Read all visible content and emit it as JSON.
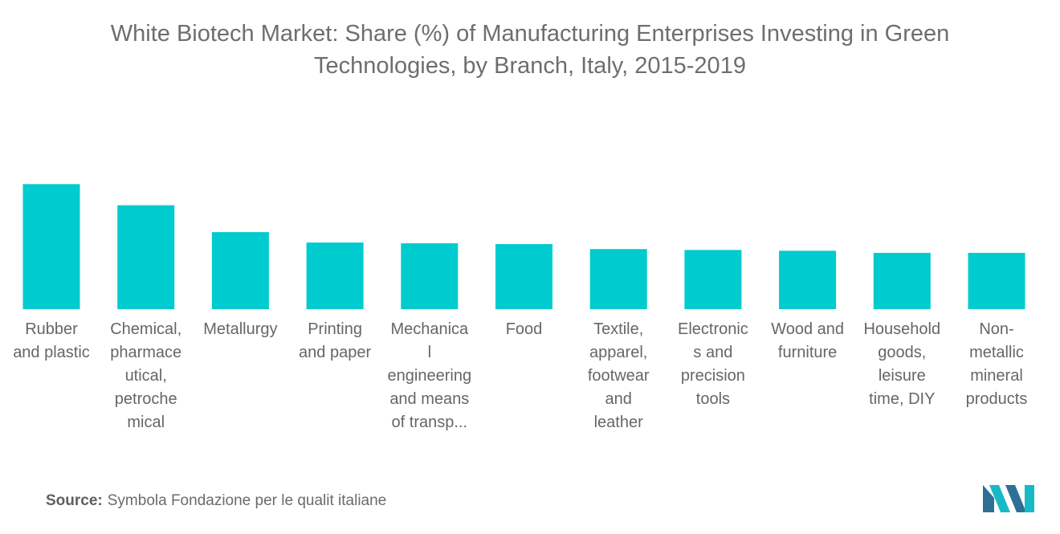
{
  "title": "White Biotech Market: Share (%) of Manufacturing Enterprises Investing in Green Technologies, by Branch, Italy, 2015-2019",
  "source": {
    "label": "Source:",
    "text": "Symbola Fondazione per le qualit italiane"
  },
  "logo_name": "mordor-intelligence-logo",
  "colors": {
    "bar": "#00CBCE",
    "text": "#6b6b6b",
    "logo_dark": "#2e6f96",
    "logo_light": "#18b9c7"
  },
  "chart_data": {
    "type": "bar",
    "title": "White Biotech Market: Share (%) of Manufacturing Enterprises Investing in Green Technologies, by Branch, Italy, 2015-2019",
    "xlabel": "",
    "ylabel": "",
    "categories": [
      "Rubber and plastic",
      "Chemical, pharmaceutical, petrochemical",
      "Metallurgy",
      "Printing and paper",
      "Mechanical engineering and means of transp...",
      "Food",
      "Textile, apparel, footwear and leather",
      "Electronics and precision tools",
      "Wood and furniture",
      "Household goods, leisure time, DIY",
      "Non-metallic mineral products"
    ],
    "category_labels_wrapped": [
      [
        "Rubber",
        "and plastic"
      ],
      [
        "Chemical,",
        "pharmace",
        "utical,",
        "petroche",
        "mical"
      ],
      [
        "Metallurgy"
      ],
      [
        "Printing",
        "and paper"
      ],
      [
        "Mechanica",
        "l",
        "engineering",
        "and means",
        "of transp..."
      ],
      [
        "Food"
      ],
      [
        "Textile,",
        "apparel,",
        "footwear",
        "and",
        "leather"
      ],
      [
        "Electronic",
        "s and",
        "precision",
        "tools"
      ],
      [
        "Wood and",
        "furniture"
      ],
      [
        "Household",
        "goods,",
        "leisure",
        "time, DIY"
      ],
      [
        "Non-",
        "metallic",
        "mineral",
        "products"
      ]
    ],
    "values": [
      30.2,
      25.1,
      18.6,
      16.1,
      15.9,
      15.7,
      14.5,
      14.3,
      14.1,
      13.6,
      13.6
    ],
    "ylim": [
      0,
      32
    ],
    "grid": false,
    "legend": "none"
  }
}
